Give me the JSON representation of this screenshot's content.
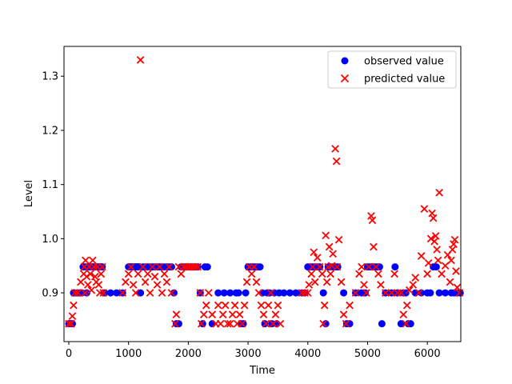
{
  "chart_data": {
    "type": "scatter",
    "xlabel": "Time",
    "ylabel": "Level",
    "xlim": [
      -80,
      6560
    ],
    "ylim": [
      0.81,
      1.355
    ],
    "xticks": [
      0,
      1000,
      2000,
      3000,
      4000,
      5000,
      6000
    ],
    "xtick_labels": [
      "0",
      "1000",
      "2000",
      "3000",
      "4000",
      "5000",
      "6000"
    ],
    "yticks": [
      0.9,
      1.0,
      1.1,
      1.2,
      1.3
    ],
    "ytick_labels": [
      "0.9",
      "1.0",
      "1.1",
      "1.2",
      "1.3"
    ],
    "grid": false,
    "legend_position": "top-right",
    "series": [
      {
        "name": "observed value",
        "marker": "circle",
        "color": "#0000ff",
        "x": [
          0,
          20,
          40,
          60,
          80,
          100,
          140,
          180,
          220,
          240,
          260,
          280,
          300,
          320,
          340,
          360,
          380,
          400,
          420,
          440,
          460,
          480,
          500,
          520,
          540,
          560,
          600,
          700,
          800,
          900,
          1000,
          1020,
          1040,
          1060,
          1080,
          1100,
          1120,
          1140,
          1160,
          1180,
          1200,
          1240,
          1280,
          1320,
          1360,
          1400,
          1440,
          1480,
          1520,
          1560,
          1600,
          1640,
          1680,
          1720,
          1760,
          1800,
          1840,
          1880,
          1920,
          1960,
          2000,
          2040,
          2080,
          2120,
          2160,
          2200,
          2240,
          2280,
          2320,
          2400,
          2500,
          2600,
          2700,
          2800,
          2840,
          2880,
          2920,
          2960,
          3000,
          3040,
          3080,
          3120,
          3160,
          3200,
          3240,
          3280,
          3320,
          3360,
          3400,
          3440,
          3480,
          3520,
          3600,
          3700,
          3800,
          3900,
          3950,
          4000,
          4040,
          4080,
          4120,
          4160,
          4200,
          4260,
          4300,
          4340,
          4380,
          4420,
          4460,
          4500,
          4600,
          4650,
          4700,
          4800,
          4900,
          4960,
          5000,
          5040,
          5080,
          5120,
          5160,
          5200,
          5240,
          5300,
          5400,
          5460,
          5500,
          5560,
          5600,
          5640,
          5680,
          5720,
          5800,
          5900,
          6000,
          6050,
          6100,
          6150,
          6200,
          6300,
          6400,
          6450,
          6500,
          6550
        ],
        "y": [
          0.843,
          0.843,
          0.843,
          0.843,
          0.9,
          0.9,
          0.9,
          0.9,
          0.9,
          0.948,
          0.948,
          0.948,
          0.9,
          0.948,
          0.948,
          0.948,
          0.948,
          0.948,
          0.948,
          0.948,
          0.948,
          0.948,
          0.948,
          0.948,
          0.948,
          0.948,
          0.9,
          0.9,
          0.9,
          0.9,
          0.948,
          0.948,
          0.948,
          0.948,
          0.948,
          0.948,
          0.948,
          0.948,
          0.948,
          0.948,
          0.9,
          0.948,
          0.948,
          0.948,
          0.948,
          0.948,
          0.948,
          0.948,
          0.948,
          0.948,
          0.948,
          0.948,
          0.948,
          0.948,
          0.9,
          0.843,
          0.843,
          0.948,
          0.948,
          0.948,
          0.948,
          0.948,
          0.948,
          0.948,
          0.948,
          0.9,
          0.843,
          0.948,
          0.948,
          0.843,
          0.9,
          0.9,
          0.9,
          0.9,
          0.9,
          0.843,
          0.843,
          0.9,
          0.948,
          0.948,
          0.948,
          0.948,
          0.948,
          0.948,
          0.9,
          0.843,
          0.9,
          0.9,
          0.843,
          0.9,
          0.843,
          0.9,
          0.9,
          0.9,
          0.9,
          0.9,
          0.9,
          0.948,
          0.948,
          0.948,
          0.948,
          0.948,
          0.948,
          0.9,
          0.843,
          0.948,
          0.948,
          0.948,
          0.948,
          0.948,
          0.9,
          0.843,
          0.843,
          0.9,
          0.9,
          0.9,
          0.948,
          0.948,
          0.948,
          0.948,
          0.948,
          0.948,
          0.843,
          0.9,
          0.9,
          0.948,
          0.9,
          0.843,
          0.9,
          0.9,
          0.843,
          0.843,
          0.9,
          0.9,
          0.9,
          0.9,
          0.948,
          0.948,
          0.9,
          0.9,
          0.9,
          0.9,
          0.9,
          0.9
        ]
      },
      {
        "name": "predicted value",
        "marker": "x",
        "color": "#ff0000",
        "x": [
          0,
          40,
          60,
          80,
          100,
          150,
          200,
          250,
          260,
          270,
          280,
          300,
          320,
          340,
          360,
          380,
          400,
          420,
          440,
          460,
          480,
          500,
          520,
          540,
          560,
          580,
          900,
          950,
          1000,
          1040,
          1080,
          1120,
          1160,
          1200,
          1240,
          1280,
          1320,
          1360,
          1400,
          1440,
          1480,
          1520,
          1560,
          1600,
          1640,
          1680,
          1720,
          1780,
          1800,
          1840,
          1880,
          1920,
          1960,
          2000,
          2040,
          2080,
          2120,
          2160,
          2200,
          2220,
          2260,
          2300,
          2340,
          2400,
          2460,
          2500,
          2540,
          2580,
          2620,
          2660,
          2700,
          2740,
          2780,
          2820,
          2860,
          2900,
          2940,
          2980,
          3020,
          3060,
          3100,
          3140,
          3180,
          3220,
          3260,
          3300,
          3340,
          3380,
          3420,
          3460,
          3500,
          3540,
          3900,
          3950,
          4000,
          4020,
          4060,
          4080,
          4100,
          4120,
          4160,
          4200,
          4240,
          4260,
          4280,
          4300,
          4320,
          4340,
          4360,
          4380,
          4400,
          4420,
          4460,
          4480,
          4490,
          4520,
          4560,
          4600,
          4640,
          4700,
          4800,
          4860,
          4900,
          4940,
          4980,
          5020,
          5060,
          5080,
          5100,
          5140,
          5180,
          5220,
          5300,
          5400,
          5450,
          5500,
          5560,
          5600,
          5640,
          5660,
          5700,
          5760,
          5800,
          5860,
          5900,
          5950,
          6000,
          6020,
          6060,
          6080,
          6100,
          6120,
          6140,
          6160,
          6180,
          6200,
          6240,
          6300,
          6340,
          6380,
          6400,
          6420,
          6440,
          6460,
          6480,
          6500,
          6540
        ],
        "y": [
          0.843,
          0.843,
          0.857,
          0.877,
          0.9,
          0.9,
          0.92,
          0.935,
          0.948,
          0.9,
          0.96,
          0.93,
          0.915,
          0.948,
          0.935,
          0.905,
          0.96,
          0.948,
          0.93,
          0.92,
          0.948,
          0.915,
          0.9,
          0.935,
          0.948,
          0.9,
          0.9,
          0.92,
          0.935,
          0.948,
          0.915,
          0.9,
          0.935,
          1.33,
          0.948,
          0.92,
          0.935,
          0.9,
          0.948,
          0.93,
          0.915,
          0.948,
          0.9,
          0.935,
          0.92,
          0.948,
          0.9,
          0.843,
          0.86,
          0.948,
          0.935,
          0.948,
          0.948,
          0.948,
          0.948,
          0.948,
          0.948,
          0.948,
          0.9,
          0.843,
          0.86,
          0.877,
          0.9,
          0.86,
          0.843,
          0.877,
          0.843,
          0.86,
          0.877,
          0.843,
          0.843,
          0.86,
          0.877,
          0.843,
          0.86,
          0.843,
          0.877,
          0.92,
          0.948,
          0.935,
          0.948,
          0.92,
          0.9,
          0.877,
          0.86,
          0.843,
          0.877,
          0.9,
          0.843,
          0.86,
          0.877,
          0.843,
          0.9,
          0.9,
          0.9,
          0.915,
          0.935,
          0.948,
          0.975,
          0.92,
          0.965,
          0.948,
          0.935,
          0.843,
          0.877,
          1.006,
          0.92,
          0.948,
          0.985,
          0.935,
          0.95,
          0.972,
          1.166,
          1.143,
          0.948,
          0.998,
          0.92,
          0.86,
          0.843,
          0.877,
          0.9,
          0.935,
          0.948,
          0.915,
          0.9,
          0.948,
          1.042,
          1.034,
          0.985,
          0.948,
          0.935,
          0.915,
          0.9,
          0.9,
          0.935,
          0.9,
          0.9,
          0.86,
          0.843,
          0.877,
          0.905,
          0.915,
          0.928,
          0.9,
          0.968,
          1.055,
          0.935,
          0.955,
          1.0,
          1.047,
          1.038,
          0.995,
          1.005,
          0.98,
          0.96,
          1.085,
          0.935,
          0.95,
          0.97,
          0.92,
          0.96,
          0.98,
          0.99,
          0.998,
          0.94,
          0.91,
          0.9
        ]
      }
    ]
  }
}
